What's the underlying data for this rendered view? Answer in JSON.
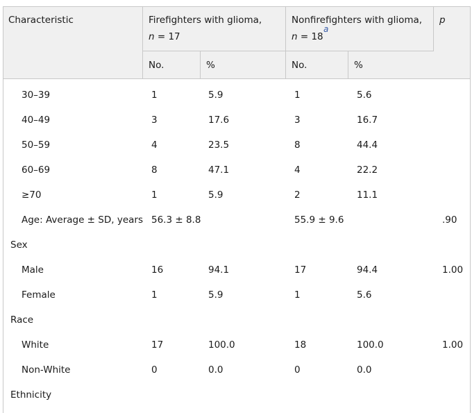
{
  "header": {
    "characteristic": "Characteristic",
    "ff_title": "Firefighters with glioma,",
    "ff_n_var": "n",
    "ff_n_val": " = 17",
    "nff_title": "Nonfirefighters with glioma,",
    "nff_n_var": "n",
    "nff_n_val": " = 18",
    "nff_footnote": "a",
    "p": "p",
    "ff_no": "No.",
    "ff_pct": "%",
    "nff_no": "No.",
    "nff_pct": "%"
  },
  "rows": [
    {
      "label": "30–39",
      "ff_no": "1",
      "ff_pct": "5.9",
      "nff_no": "1",
      "nff_pct": "5.6",
      "p": ""
    },
    {
      "label": "40–49",
      "ff_no": "3",
      "ff_pct": "17.6",
      "nff_no": "3",
      "nff_pct": "16.7",
      "p": ""
    },
    {
      "label": "50–59",
      "ff_no": "4",
      "ff_pct": "23.5",
      "nff_no": "8",
      "nff_pct": "44.4",
      "p": ""
    },
    {
      "label": "60–69",
      "ff_no": "8",
      "ff_pct": "47.1",
      "nff_no": "4",
      "nff_pct": "22.2",
      "p": ""
    },
    {
      "label": "≥70",
      "ff_no": "1",
      "ff_pct": "5.9",
      "nff_no": "2",
      "nff_pct": "11.1",
      "p": ""
    },
    {
      "label": "Age: Average ± SD, years",
      "ff_no": "56.3 ± 8.8",
      "ff_pct": "",
      "nff_no": "55.9 ± 9.6",
      "nff_pct": "",
      "p": ".90"
    },
    {
      "label": "Sex",
      "ff_no": "",
      "ff_pct": "",
      "nff_no": "",
      "nff_pct": "",
      "p": ""
    },
    {
      "label": "Male",
      "ff_no": "16",
      "ff_pct": "94.1",
      "nff_no": "17",
      "nff_pct": "94.4",
      "p": "1.00"
    },
    {
      "label": "Female",
      "ff_no": "1",
      "ff_pct": "5.9",
      "nff_no": "1",
      "nff_pct": "5.6",
      "p": ""
    },
    {
      "label": "Race",
      "ff_no": "",
      "ff_pct": "",
      "nff_no": "",
      "nff_pct": "",
      "p": ""
    },
    {
      "label": "White",
      "ff_no": "17",
      "ff_pct": "100.0",
      "nff_no": "18",
      "nff_pct": "100.0",
      "p": "1.00"
    },
    {
      "label": "Non-White",
      "ff_no": "0",
      "ff_pct": "0.0",
      "nff_no": "0",
      "nff_pct": "0.0",
      "p": ""
    },
    {
      "label": "Ethnicity",
      "ff_no": "",
      "ff_pct": "",
      "nff_no": "",
      "nff_pct": "",
      "p": ""
    }
  ]
}
